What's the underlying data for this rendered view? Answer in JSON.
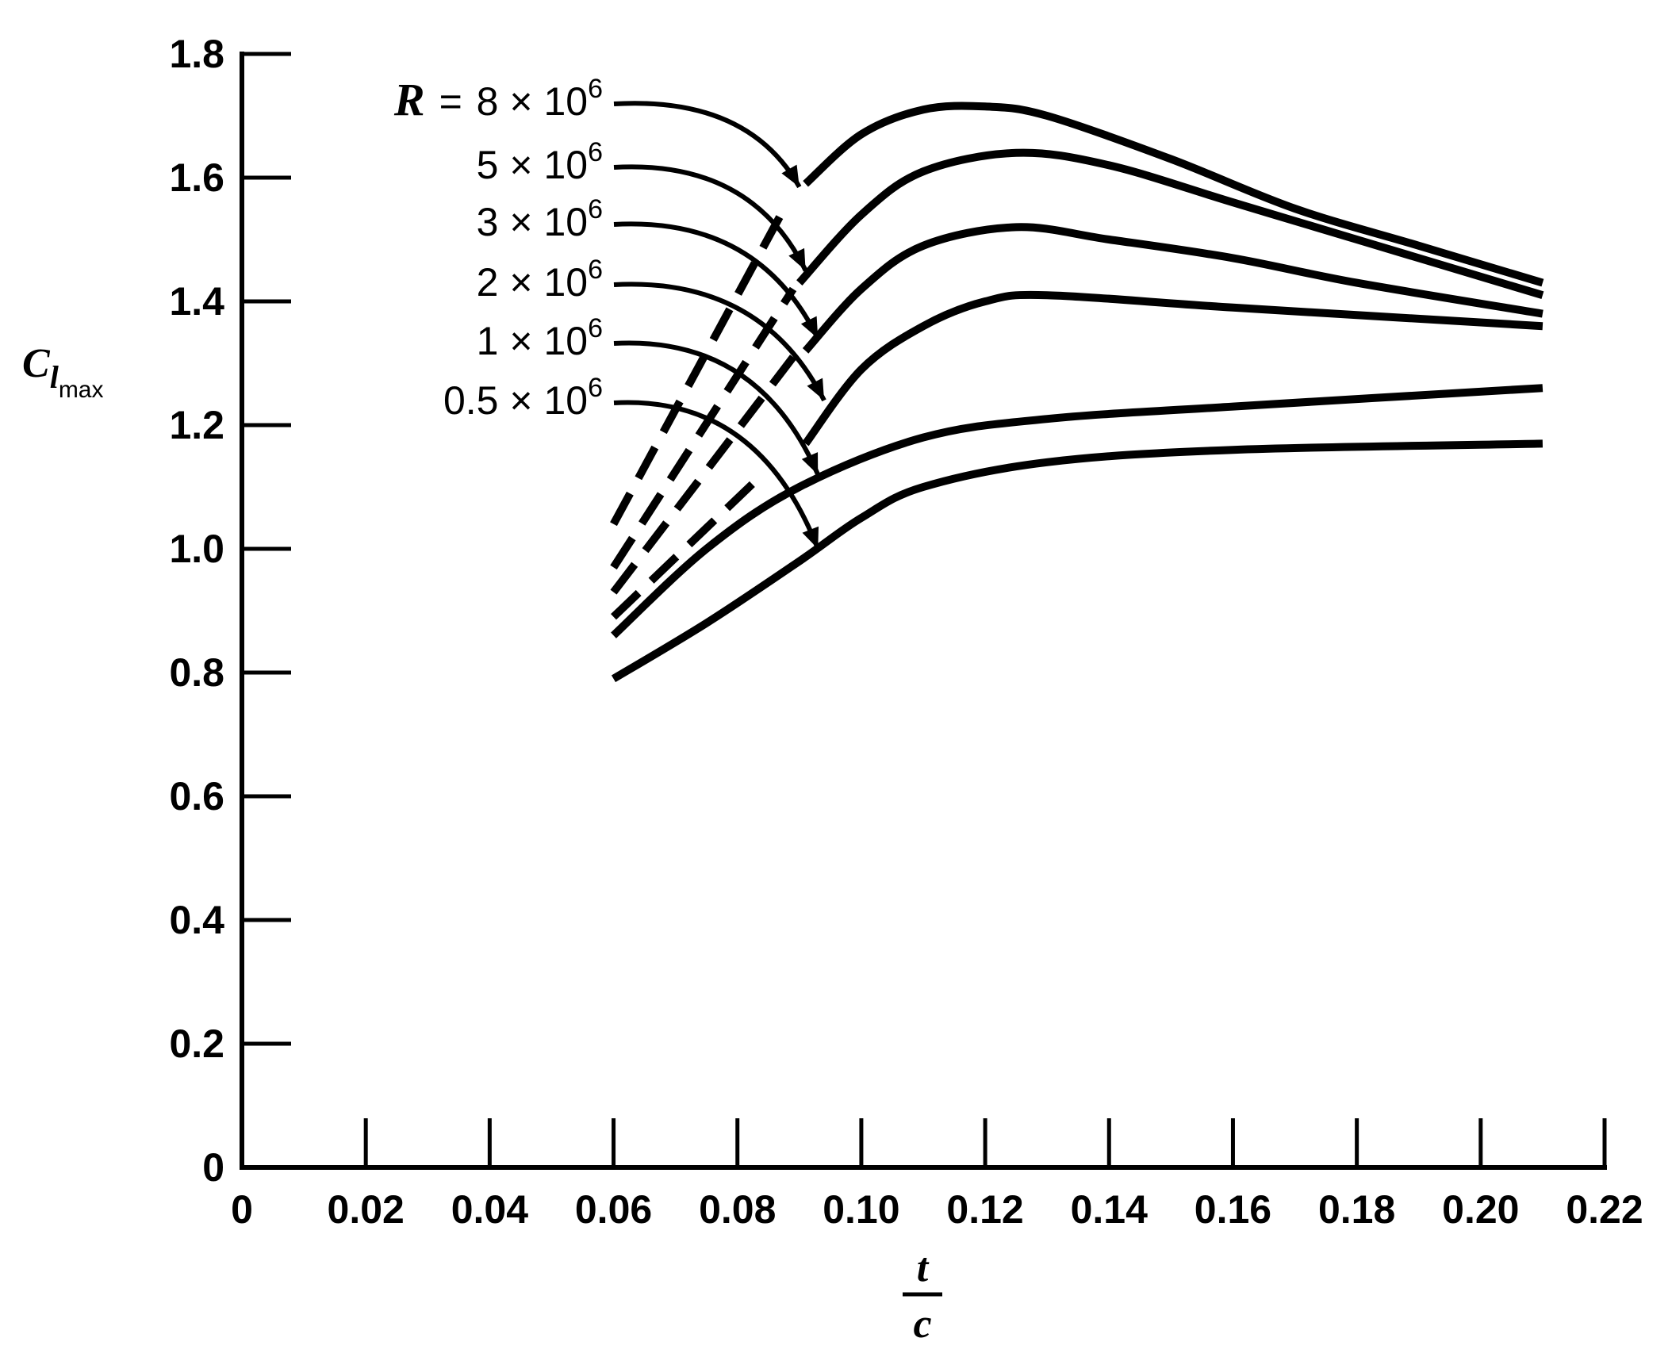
{
  "chart_data": {
    "type": "line",
    "title": "",
    "xlabel_numerator": "t",
    "xlabel_denominator": "c",
    "ylabel_main": "C",
    "ylabel_sub1": "l",
    "ylabel_sub2": "max",
    "xlim": [
      0,
      0.22
    ],
    "ylim": [
      0,
      1.8
    ],
    "xticks": [
      0,
      0.02,
      0.04,
      0.06,
      0.08,
      0.1,
      0.12,
      0.14,
      0.16,
      0.18,
      0.2,
      0.22
    ],
    "xtick_labels": [
      "0",
      "0.02",
      "0.04",
      "0.06",
      "0.08",
      "0.10",
      "0.12",
      "0.14",
      "0.16",
      "0.18",
      "0.20",
      "0.22"
    ],
    "yticks": [
      0,
      0.2,
      0.4,
      0.6,
      0.8,
      1.0,
      1.2,
      1.4,
      1.6,
      1.8
    ],
    "ytick_labels": [
      "0",
      "0.2",
      "0.4",
      "0.6",
      "0.8",
      "1.0",
      "1.2",
      "1.4",
      "1.6",
      "1.8"
    ],
    "grid": false,
    "annotation_prefix": "R",
    "annotation_equals": "=",
    "annotation_times": "×",
    "annotation_base": "10",
    "annotation_exp": "6",
    "series": [
      {
        "label_coef": "8",
        "solid": [
          [
            0.091,
            1.59
          ],
          [
            0.1,
            1.67
          ],
          [
            0.11,
            1.71
          ],
          [
            0.12,
            1.715
          ],
          [
            0.13,
            1.7
          ],
          [
            0.15,
            1.63
          ],
          [
            0.17,
            1.55
          ],
          [
            0.19,
            1.49
          ],
          [
            0.21,
            1.43
          ]
        ],
        "dashed": [
          [
            0.06,
            1.04
          ],
          [
            0.087,
            1.54
          ]
        ]
      },
      {
        "label_coef": "5",
        "solid": [
          [
            0.09,
            1.43
          ],
          [
            0.1,
            1.54
          ],
          [
            0.11,
            1.61
          ],
          [
            0.125,
            1.64
          ],
          [
            0.14,
            1.62
          ],
          [
            0.16,
            1.56
          ],
          [
            0.18,
            1.5
          ],
          [
            0.21,
            1.41
          ]
        ],
        "dashed": [
          [
            0.06,
            0.97
          ],
          [
            0.089,
            1.42
          ]
        ]
      },
      {
        "label_coef": "3",
        "solid": [
          [
            0.091,
            1.32
          ],
          [
            0.1,
            1.42
          ],
          [
            0.11,
            1.49
          ],
          [
            0.125,
            1.52
          ],
          [
            0.14,
            1.5
          ],
          [
            0.16,
            1.47
          ],
          [
            0.18,
            1.43
          ],
          [
            0.21,
            1.38
          ]
        ],
        "dashed": [
          [
            0.06,
            0.93
          ],
          [
            0.089,
            1.31
          ]
        ]
      },
      {
        "label_coef": "2",
        "solid": [
          [
            0.091,
            1.17
          ],
          [
            0.1,
            1.29
          ],
          [
            0.11,
            1.36
          ],
          [
            0.12,
            1.4
          ],
          [
            0.13,
            1.41
          ],
          [
            0.16,
            1.39
          ],
          [
            0.21,
            1.36
          ]
        ],
        "dashed": [
          [
            0.06,
            0.89
          ],
          [
            0.084,
            1.12
          ]
        ]
      },
      {
        "label_coef": "1",
        "solid": [
          [
            0.06,
            0.86
          ],
          [
            0.075,
            1.0
          ],
          [
            0.09,
            1.1
          ],
          [
            0.11,
            1.18
          ],
          [
            0.13,
            1.21
          ],
          [
            0.16,
            1.23
          ],
          [
            0.21,
            1.26
          ]
        ],
        "dashed": []
      },
      {
        "label_coef": "0.5",
        "solid": [
          [
            0.06,
            0.79
          ],
          [
            0.075,
            0.88
          ],
          [
            0.09,
            0.98
          ],
          [
            0.1,
            1.05
          ],
          [
            0.11,
            1.1
          ],
          [
            0.13,
            1.14
          ],
          [
            0.16,
            1.16
          ],
          [
            0.21,
            1.17
          ]
        ],
        "dashed": []
      }
    ]
  }
}
